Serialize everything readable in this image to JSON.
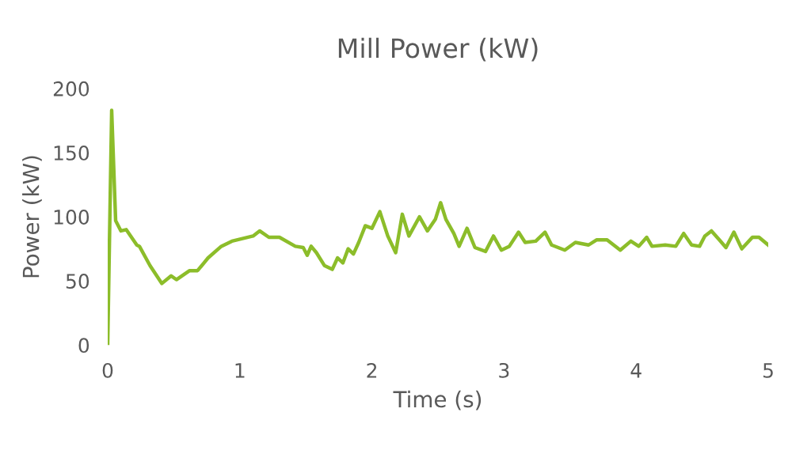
{
  "chart_data": {
    "type": "line",
    "title": "Mill Power (kW)",
    "xlabel": "Time (s)",
    "ylabel": "Power (kW)",
    "xlim": [
      0,
      5
    ],
    "xticks": [
      0,
      1,
      2,
      3,
      4,
      5
    ],
    "ylim": [
      0,
      200
    ],
    "yticks": [
      0,
      50,
      100,
      150,
      200
    ],
    "grid": false,
    "marker": "none",
    "line_style": "solid",
    "series": [
      {
        "color": "#8cbd2a",
        "x": [
          0,
          0.03,
          0.06,
          0.1,
          0.14,
          0.22,
          0.24,
          0.32,
          0.41,
          0.48,
          0.52,
          0.62,
          0.68,
          0.76,
          0.86,
          0.94,
          1.02,
          1.1,
          1.15,
          1.22,
          1.3,
          1.42,
          1.48,
          1.51,
          1.54,
          1.58,
          1.64,
          1.7,
          1.74,
          1.78,
          1.82,
          1.86,
          1.9,
          1.95,
          2.0,
          2.06,
          2.12,
          2.18,
          2.23,
          2.28,
          2.36,
          2.42,
          2.48,
          2.52,
          2.56,
          2.62,
          2.66,
          2.72,
          2.78,
          2.86,
          2.92,
          2.98,
          3.04,
          3.11,
          3.16,
          3.24,
          3.31,
          3.36,
          3.46,
          3.54,
          3.64,
          3.7,
          3.78,
          3.88,
          3.96,
          4.02,
          4.08,
          4.12,
          4.22,
          4.3,
          4.36,
          4.42,
          4.48,
          4.52,
          4.57,
          4.63,
          4.68,
          4.74,
          4.8,
          4.88,
          4.93,
          5.0
        ],
        "values": [
          0,
          183,
          97,
          89,
          90,
          78,
          77,
          62,
          48,
          54,
          51,
          58,
          58,
          68,
          77,
          81,
          83,
          85,
          89,
          84,
          84,
          77,
          76,
          70,
          77,
          72,
          62,
          59,
          68,
          64,
          75,
          71,
          80,
          93,
          91,
          104,
          85,
          72,
          102,
          85,
          100,
          89,
          98,
          111,
          98,
          87,
          77,
          91,
          76,
          73,
          85,
          74,
          77,
          88,
          80,
          81,
          88,
          78,
          74,
          80,
          78,
          82,
          82,
          74,
          81,
          77,
          84,
          77,
          78,
          77,
          87,
          78,
          77,
          85,
          89,
          82,
          76,
          88,
          75,
          84,
          84,
          78
        ]
      }
    ]
  }
}
